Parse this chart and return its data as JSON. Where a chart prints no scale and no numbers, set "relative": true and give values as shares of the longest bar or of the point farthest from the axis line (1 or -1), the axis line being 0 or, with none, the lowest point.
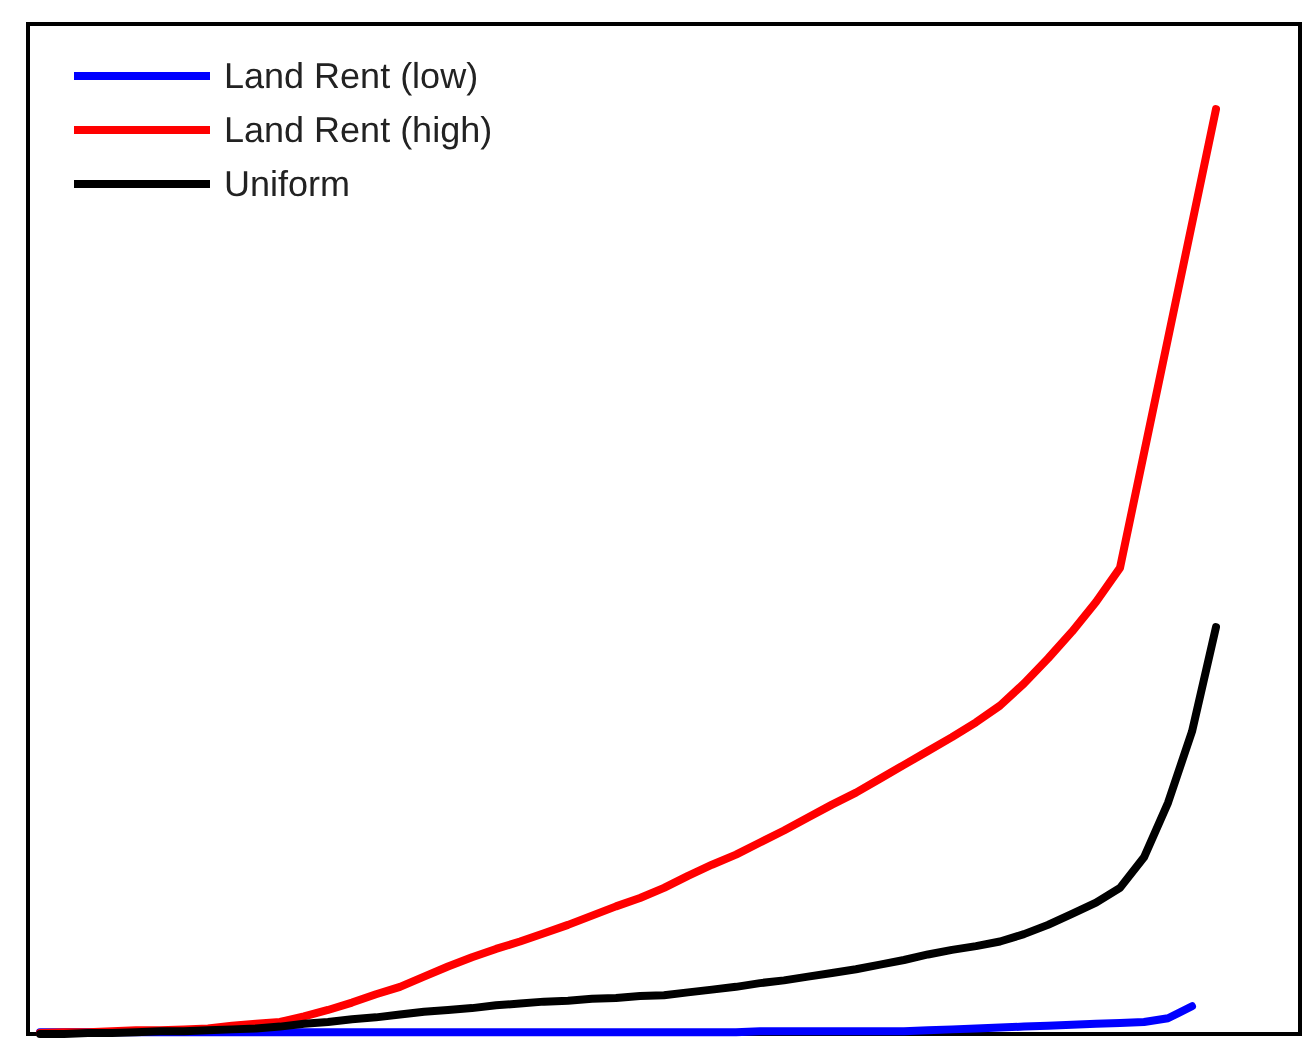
{
  "chart_data": {
    "type": "line",
    "relative": true,
    "categories": [
      null,
      null,
      null,
      null,
      null,
      null,
      null,
      null,
      null,
      null,
      null,
      null,
      null,
      null,
      null,
      null,
      null,
      null,
      null,
      null,
      null,
      null,
      null,
      null,
      null,
      null,
      null,
      null,
      null,
      null,
      null,
      null,
      null,
      null,
      null,
      null,
      null,
      null,
      null,
      null,
      null,
      null,
      null,
      null,
      null,
      null,
      null,
      null,
      null,
      null,
      null,
      null,
      null
    ],
    "series": [
      {
        "name": "Land Rent (low)",
        "color": "#0000ff",
        "values": [
          0.002,
          0.002,
          0.002,
          0.002,
          0.002,
          0.002,
          0.002,
          0.002,
          0.002,
          0.002,
          0.002,
          0.002,
          0.002,
          0.002,
          0.002,
          0.002,
          0.002,
          0.002,
          0.002,
          0.002,
          0.002,
          0.002,
          0.002,
          0.002,
          0.002,
          0.002,
          0.002,
          0.002,
          0.002,
          0.002,
          0.003,
          0.003,
          0.003,
          0.003,
          0.003,
          0.003,
          0.003,
          0.004,
          0.005,
          0.006,
          0.007,
          0.008,
          0.009,
          0.01,
          0.011,
          0.012,
          0.013,
          0.017,
          0.03,
          null,
          null,
          null,
          null
        ]
      },
      {
        "name": "Land Rent (high)",
        "color": "#ff0000",
        "values": [
          0.001,
          0.002,
          0.002,
          0.003,
          0.004,
          0.004,
          0.005,
          0.006,
          0.009,
          0.011,
          0.013,
          0.019,
          0.026,
          0.034,
          0.043,
          0.051,
          0.062,
          0.073,
          0.083,
          0.092,
          0.1,
          0.109,
          0.118,
          0.128,
          0.138,
          0.147,
          0.158,
          0.171,
          0.183,
          0.194,
          0.207,
          0.22,
          0.234,
          0.248,
          0.261,
          0.276,
          0.291,
          0.306,
          0.321,
          0.337,
          0.355,
          0.379,
          0.406,
          0.435,
          0.467,
          0.504,
          0.628,
          0.752,
          0.876,
          1,
          null,
          null,
          null
        ]
      },
      {
        "name": "Uniform",
        "color": "#000000",
        "values": [
          0,
          0,
          0.001,
          0.001,
          0.002,
          0.003,
          0.003,
          0.004,
          0.005,
          0.006,
          0.008,
          0.011,
          0.013,
          0.016,
          0.018,
          0.021,
          0.024,
          0.026,
          0.028,
          0.031,
          0.033,
          0.035,
          0.036,
          0.038,
          0.039,
          0.041,
          0.042,
          0.045,
          0.048,
          0.051,
          0.055,
          0.058,
          0.062,
          0.066,
          0.07,
          0.075,
          0.08,
          0.086,
          0.091,
          0.095,
          0.1,
          0.108,
          0.118,
          0.13,
          0.142,
          0.158,
          0.191,
          0.25,
          0.327,
          0.44,
          null,
          null,
          null
        ]
      }
    ],
    "legend": "top left",
    "marker": "none",
    "line_style": "solid"
  }
}
